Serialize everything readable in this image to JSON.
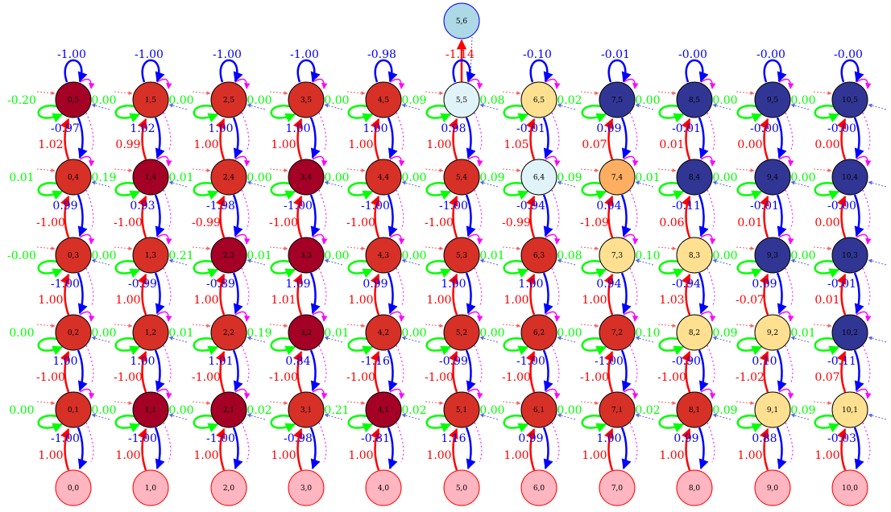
{
  "colors": {
    "up": "#ff0000",
    "down": "#0000ff",
    "self_green": "#00ff00",
    "self_blue": "#0000ff",
    "right_arrow": "#ff6060",
    "left_arrow": "#5b5bff",
    "magenta": "#ff00ff",
    "node_stroke": "#000000",
    "bottom_fill": "#ffb6c1",
    "bottom_stroke": "#ff0000",
    "top_fill": "#add8e6",
    "top_stroke": "#0000ff"
  },
  "fills": {
    "D": "#a50026",
    "R": "#d73027",
    "O": "#fdae61",
    "Y": "#fee090",
    "L": "#e0f3f8",
    "N": "#313695"
  },
  "grid": {
    "rows": [
      5,
      4,
      3,
      2,
      1
    ],
    "cols": [
      0,
      1,
      2,
      3,
      4,
      5,
      6,
      7,
      8,
      9,
      10
    ],
    "fill_codes": {
      "5": [
        "D",
        "R",
        "R",
        "R",
        "R",
        "L",
        "Y",
        "N",
        "N",
        "N",
        "N"
      ],
      "4": [
        "R",
        "D",
        "R",
        "D",
        "R",
        "R",
        "L",
        "O",
        "N",
        "N",
        "N"
      ],
      "3": [
        "R",
        "R",
        "D",
        "D",
        "R",
        "R",
        "R",
        "Y",
        "Y",
        "N",
        "N"
      ],
      "2": [
        "R",
        "R",
        "R",
        "D",
        "R",
        "R",
        "R",
        "R",
        "Y",
        "Y",
        "N"
      ],
      "1": [
        "R",
        "D",
        "D",
        "R",
        "D",
        "R",
        "R",
        "R",
        "R",
        "Y",
        "Y"
      ]
    },
    "self_top": {
      "5": [
        "-1.00",
        "-1.00",
        "-1.00",
        "-1.00",
        "-0.98",
        "-1.14",
        "-0.10",
        "-0.01",
        "-0.00",
        "-0.00",
        "-0.00"
      ]
    },
    "right_labels": {
      "5": [
        "0.00",
        "0.00",
        "0.00",
        "0.00",
        "0.09",
        "0.08",
        "0.02",
        "0.00",
        "0.00",
        "0.00",
        ""
      ],
      "4": [
        "0.19",
        "0.01",
        "0.00",
        "0.00",
        "0.00",
        "0.09",
        "0.09",
        "0.01",
        "0.00",
        "0.00",
        ""
      ],
      "3": [
        "0.00",
        "0.21",
        "0.01",
        "0.00",
        "0.00",
        "0.01",
        "0.08",
        "0.10",
        "0.00",
        "0.00",
        ""
      ],
      "2": [
        "0.00",
        "0.01",
        "0.19",
        "0.01",
        "0.00",
        "0.00",
        "0.00",
        "0.10",
        "0.09",
        "0.01",
        ""
      ],
      "1": [
        "0.00",
        "0.00",
        "0.02",
        "0.21",
        "0.02",
        "0.00",
        "0.00",
        "0.02",
        "0.09",
        "0.09",
        ""
      ]
    },
    "left_labels": {
      "5": "-0.20",
      "4": "0.01",
      "3": "-0.00",
      "2": "0.00",
      "1": "0.00"
    },
    "up_labels": {
      "4": [
        "1.02",
        "0.99",
        "1.00",
        "1.00",
        "1.00",
        "1.00",
        "1.05",
        "0.07",
        "0.01",
        "0.00",
        "0.00"
      ],
      "3": [
        "-1.00",
        "-1.00",
        "-0.99",
        "-1.00",
        "-1.00",
        "-1.00",
        "-0.99",
        "-1.09",
        "0.06",
        "0.01",
        "0.00"
      ],
      "2": [
        "1.00",
        "1.00",
        "1.00",
        "1.01",
        "1.00",
        "1.00",
        "1.00",
        "1.00",
        "1.03",
        "-0.07",
        "0.01"
      ],
      "1": [
        "-1.00",
        "-1.00",
        "-1.00",
        "-1.00",
        "-1.00",
        "-1.00",
        "-1.00",
        "-1.00",
        "-1.00",
        "-1.02",
        "0.07"
      ],
      "0": [
        "1.00",
        "1.00",
        "1.00",
        "1.00",
        "1.00",
        "1.00",
        "1.00",
        "1.00",
        "1.00",
        "1.00",
        "1.00"
      ]
    },
    "down_labels": {
      "5": [
        "-0.97",
        "1.02",
        "1.00",
        "1.00",
        "1.00",
        "0.98",
        "-0.01",
        "0.09",
        "-0.01",
        "-0.00",
        "-0.00"
      ],
      "4": [
        "0.99",
        "0.93",
        "-1.98",
        "-1.00",
        "-1.00",
        "-1.00",
        "-0.94",
        "0.04",
        "-0.11",
        "-0.01",
        "-0.00"
      ],
      "3": [
        "-1.00",
        "-0.99",
        "-0.89",
        "1.09",
        "0.99",
        "1.00",
        "1.00",
        "0.94",
        "-0.94",
        "0.09",
        "-0.01"
      ],
      "2": [
        "1.00",
        "1.00",
        "1.01",
        "0.84",
        "-1.16",
        "-0.99",
        "-1.00",
        "-1.00",
        "-0.90",
        "0.10",
        "-0.11"
      ],
      "1": [
        "-1.00",
        "-1.00",
        "-1.00",
        "-0.98",
        "-0.81",
        "1.16",
        "0.99",
        "1.00",
        "0.99",
        "0.88",
        "-0.03"
      ]
    }
  },
  "top_node": {
    "label": "5,6"
  }
}
